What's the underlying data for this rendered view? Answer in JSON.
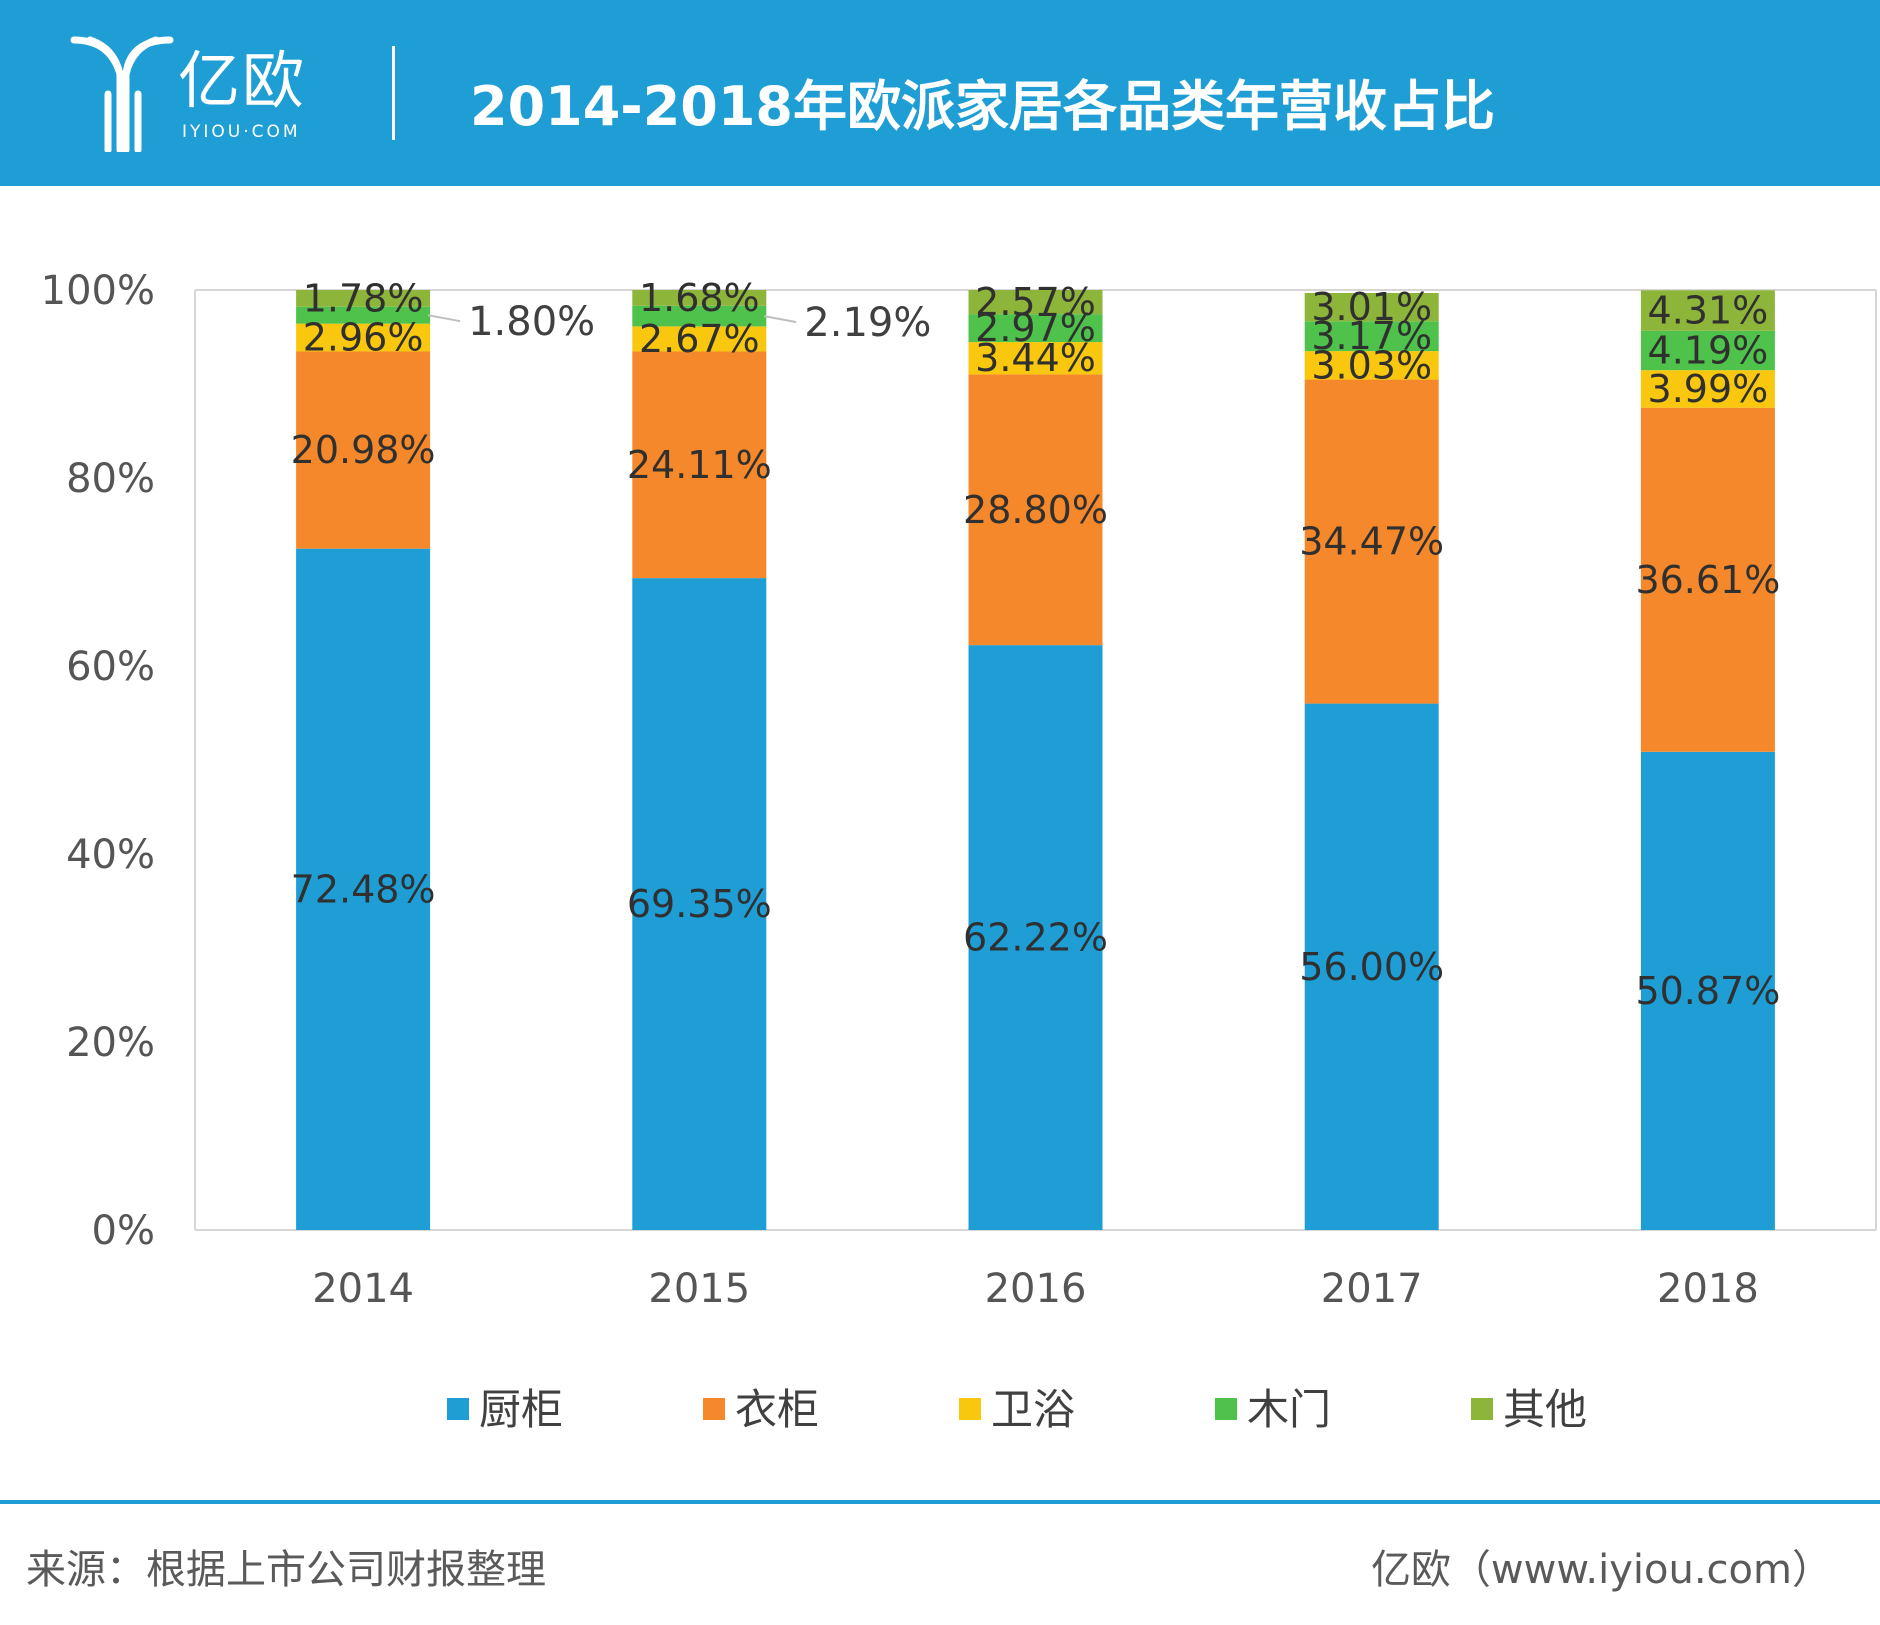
{
  "header": {
    "logo_text": "亿欧",
    "logo_sub": "IYIOU·COM",
    "title": "2014-2018年欧派家居各品类年营收占比",
    "bg_color": "#1f9ed5"
  },
  "chart_data": {
    "type": "bar",
    "stacked": true,
    "title": "2014-2018年欧派家居各品类年营收占比",
    "categories": [
      "2014",
      "2015",
      "2016",
      "2017",
      "2018"
    ],
    "y_ticks": [
      "0%",
      "20%",
      "40%",
      "60%",
      "80%",
      "100%"
    ],
    "ylim": [
      0,
      100
    ],
    "grid": false,
    "legend_position": "bottom",
    "series": [
      {
        "name": "厨柜",
        "color": "#1f9ed5",
        "values": [
          72.48,
          69.35,
          62.22,
          56.0,
          50.87
        ],
        "labels": [
          "72.48%",
          "69.35%",
          "62.22%",
          "56.00%",
          "50.87%"
        ]
      },
      {
        "name": "衣柜",
        "color": "#f5882a",
        "values": [
          20.98,
          24.11,
          28.8,
          34.47,
          36.61
        ],
        "labels": [
          "20.98%",
          "24.11%",
          "28.80%",
          "34.47%",
          "36.61%"
        ]
      },
      {
        "name": "卫浴",
        "color": "#f9c80e",
        "values": [
          2.96,
          2.67,
          3.44,
          3.03,
          3.99
        ],
        "labels": [
          "2.96%",
          "2.67%",
          "3.44%",
          "3.03%",
          "3.99%"
        ]
      },
      {
        "name": "木门",
        "color": "#4ec24a",
        "values": [
          1.8,
          2.19,
          2.97,
          3.17,
          4.19
        ],
        "labels": [
          "1.80%",
          "2.19%",
          "2.97%",
          "3.17%",
          "4.19%"
        ]
      },
      {
        "name": "其他",
        "color": "#8db53a",
        "values": [
          1.78,
          1.68,
          2.57,
          3.01,
          4.31
        ],
        "labels": [
          "1.78%",
          "1.68%",
          "2.57%",
          "3.01%",
          "4.31%"
        ]
      }
    ]
  },
  "footer": {
    "source": "来源：根据上市公司财报整理",
    "brand": "亿欧（www.iyiou.com）"
  }
}
